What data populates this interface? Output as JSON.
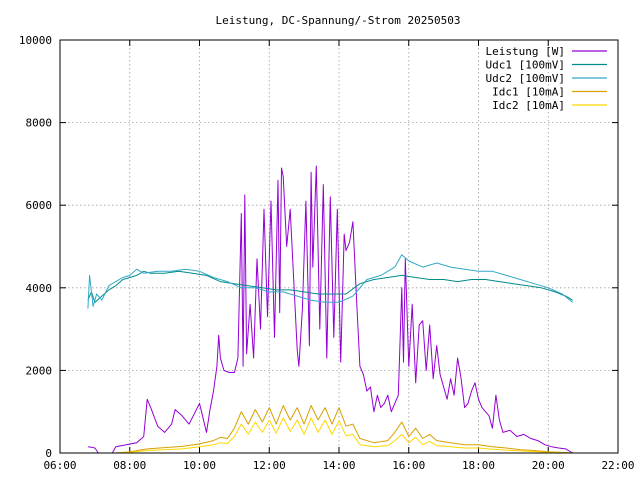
{
  "chart_data": {
    "type": "line",
    "title": "Leistung, DC-Spannung/-Strom 20250503",
    "xlabel": "",
    "ylabel": "",
    "x_ticks": [
      "06:00",
      "08:00",
      "10:00",
      "12:00",
      "14:00",
      "16:00",
      "18:00",
      "20:00",
      "22:00"
    ],
    "x_range_hours": [
      6,
      22
    ],
    "y_ticks": [
      "0",
      "2000",
      "4000",
      "6000",
      "8000",
      "10000"
    ],
    "ylim": [
      0,
      10000
    ],
    "grid": true,
    "legend_position": "top-right",
    "series": [
      {
        "name": "Leistung [W]",
        "color": "#9400d3",
        "points": [
          [
            6.8,
            150
          ],
          [
            6.9,
            140
          ],
          [
            7.0,
            120
          ],
          [
            7.1,
            0
          ],
          [
            7.5,
            0
          ],
          [
            7.6,
            150
          ],
          [
            7.9,
            200
          ],
          [
            8.2,
            250
          ],
          [
            8.4,
            400
          ],
          [
            8.5,
            1300
          ],
          [
            8.6,
            1100
          ],
          [
            8.8,
            650
          ],
          [
            9.0,
            500
          ],
          [
            9.2,
            700
          ],
          [
            9.3,
            1050
          ],
          [
            9.5,
            900
          ],
          [
            9.7,
            700
          ],
          [
            9.85,
            950
          ],
          [
            10.0,
            1200
          ],
          [
            10.1,
            850
          ],
          [
            10.2,
            500
          ],
          [
            10.3,
            1050
          ],
          [
            10.4,
            1500
          ],
          [
            10.5,
            2100
          ],
          [
            10.55,
            2850
          ],
          [
            10.6,
            2300
          ],
          [
            10.7,
            2000
          ],
          [
            10.85,
            1950
          ],
          [
            11.0,
            1950
          ],
          [
            11.1,
            2300
          ],
          [
            11.2,
            5800
          ],
          [
            11.25,
            2100
          ],
          [
            11.3,
            6250
          ],
          [
            11.35,
            2400
          ],
          [
            11.45,
            3600
          ],
          [
            11.55,
            2300
          ],
          [
            11.65,
            4700
          ],
          [
            11.75,
            3000
          ],
          [
            11.85,
            5900
          ],
          [
            11.95,
            3300
          ],
          [
            12.05,
            6100
          ],
          [
            12.15,
            2800
          ],
          [
            12.25,
            6600
          ],
          [
            12.3,
            3400
          ],
          [
            12.35,
            6900
          ],
          [
            12.4,
            6700
          ],
          [
            12.5,
            5000
          ],
          [
            12.6,
            5900
          ],
          [
            12.7,
            4200
          ],
          [
            12.8,
            2500
          ],
          [
            12.85,
            2100
          ],
          [
            12.95,
            3500
          ],
          [
            13.05,
            6100
          ],
          [
            13.15,
            2600
          ],
          [
            13.2,
            6800
          ],
          [
            13.25,
            4500
          ],
          [
            13.35,
            6950
          ],
          [
            13.45,
            3000
          ],
          [
            13.55,
            6500
          ],
          [
            13.65,
            2300
          ],
          [
            13.75,
            6200
          ],
          [
            13.85,
            2800
          ],
          [
            13.95,
            5900
          ],
          [
            14.05,
            2200
          ],
          [
            14.15,
            5300
          ],
          [
            14.2,
            4900
          ],
          [
            14.3,
            5100
          ],
          [
            14.4,
            5600
          ],
          [
            14.5,
            3800
          ],
          [
            14.6,
            2100
          ],
          [
            14.7,
            1900
          ],
          [
            14.8,
            1500
          ],
          [
            14.9,
            1600
          ],
          [
            15.0,
            1000
          ],
          [
            15.1,
            1400
          ],
          [
            15.2,
            1100
          ],
          [
            15.3,
            1200
          ],
          [
            15.4,
            1400
          ],
          [
            15.5,
            1000
          ],
          [
            15.6,
            1200
          ],
          [
            15.7,
            1400
          ],
          [
            15.8,
            4000
          ],
          [
            15.85,
            2200
          ],
          [
            15.9,
            4700
          ],
          [
            16.0,
            2100
          ],
          [
            16.1,
            3600
          ],
          [
            16.2,
            1700
          ],
          [
            16.3,
            3100
          ],
          [
            16.4,
            3200
          ],
          [
            16.5,
            2000
          ],
          [
            16.6,
            3100
          ],
          [
            16.7,
            1800
          ],
          [
            16.8,
            2600
          ],
          [
            16.9,
            1900
          ],
          [
            17.0,
            1600
          ],
          [
            17.1,
            1300
          ],
          [
            17.2,
            1800
          ],
          [
            17.3,
            1400
          ],
          [
            17.4,
            2300
          ],
          [
            17.5,
            1800
          ],
          [
            17.6,
            1100
          ],
          [
            17.7,
            1200
          ],
          [
            17.8,
            1500
          ],
          [
            17.9,
            1700
          ],
          [
            18.0,
            1300
          ],
          [
            18.1,
            1100
          ],
          [
            18.2,
            1000
          ],
          [
            18.3,
            900
          ],
          [
            18.4,
            600
          ],
          [
            18.5,
            1400
          ],
          [
            18.6,
            800
          ],
          [
            18.7,
            500
          ],
          [
            18.9,
            550
          ],
          [
            19.1,
            400
          ],
          [
            19.3,
            450
          ],
          [
            19.5,
            350
          ],
          [
            19.7,
            300
          ],
          [
            19.9,
            200
          ],
          [
            20.1,
            150
          ],
          [
            20.3,
            120
          ],
          [
            20.5,
            100
          ],
          [
            20.7,
            0
          ]
        ]
      },
      {
        "name": "Udc1 [100mV]",
        "color": "#008b8b",
        "points": [
          [
            6.8,
            3700
          ],
          [
            6.9,
            3900
          ],
          [
            7.0,
            3650
          ],
          [
            7.2,
            3800
          ],
          [
            7.4,
            3950
          ],
          [
            7.6,
            4050
          ],
          [
            7.8,
            4200
          ],
          [
            8.0,
            4250
          ],
          [
            8.2,
            4300
          ],
          [
            8.4,
            4400
          ],
          [
            8.6,
            4350
          ],
          [
            9.0,
            4350
          ],
          [
            9.4,
            4400
          ],
          [
            9.8,
            4350
          ],
          [
            10.2,
            4300
          ],
          [
            10.6,
            4150
          ],
          [
            11.0,
            4100
          ],
          [
            11.4,
            4050
          ],
          [
            11.8,
            4000
          ],
          [
            12.2,
            3950
          ],
          [
            12.6,
            3950
          ],
          [
            13.0,
            3900
          ],
          [
            13.4,
            3850
          ],
          [
            13.8,
            3850
          ],
          [
            14.2,
            3850
          ],
          [
            14.6,
            4100
          ],
          [
            15.0,
            4200
          ],
          [
            15.4,
            4250
          ],
          [
            15.8,
            4300
          ],
          [
            16.2,
            4250
          ],
          [
            16.6,
            4200
          ],
          [
            17.0,
            4200
          ],
          [
            17.4,
            4150
          ],
          [
            17.8,
            4200
          ],
          [
            18.2,
            4200
          ],
          [
            18.6,
            4150
          ],
          [
            19.0,
            4100
          ],
          [
            19.4,
            4050
          ],
          [
            19.8,
            4000
          ],
          [
            20.2,
            3900
          ],
          [
            20.5,
            3800
          ],
          [
            20.7,
            3700
          ]
        ]
      },
      {
        "name": "Udc2 [100mV]",
        "color": "#32a8c8",
        "points": [
          [
            6.8,
            3500
          ],
          [
            6.85,
            4300
          ],
          [
            6.95,
            3550
          ],
          [
            7.05,
            3850
          ],
          [
            7.2,
            3700
          ],
          [
            7.4,
            4050
          ],
          [
            7.6,
            4150
          ],
          [
            7.8,
            4250
          ],
          [
            8.0,
            4300
          ],
          [
            8.2,
            4450
          ],
          [
            8.4,
            4350
          ],
          [
            8.8,
            4400
          ],
          [
            9.2,
            4400
          ],
          [
            9.6,
            4450
          ],
          [
            10.0,
            4400
          ],
          [
            10.4,
            4250
          ],
          [
            10.8,
            4150
          ],
          [
            11.2,
            4000
          ],
          [
            11.6,
            4000
          ],
          [
            12.0,
            3900
          ],
          [
            12.4,
            3900
          ],
          [
            12.8,
            3800
          ],
          [
            13.2,
            3700
          ],
          [
            13.6,
            3650
          ],
          [
            14.0,
            3650
          ],
          [
            14.4,
            3800
          ],
          [
            14.8,
            4200
          ],
          [
            15.2,
            4300
          ],
          [
            15.6,
            4500
          ],
          [
            15.8,
            4800
          ],
          [
            16.0,
            4650
          ],
          [
            16.4,
            4500
          ],
          [
            16.8,
            4600
          ],
          [
            17.2,
            4500
          ],
          [
            17.6,
            4450
          ],
          [
            18.0,
            4400
          ],
          [
            18.4,
            4400
          ],
          [
            18.8,
            4300
          ],
          [
            19.2,
            4200
          ],
          [
            19.6,
            4100
          ],
          [
            20.0,
            4000
          ],
          [
            20.4,
            3850
          ],
          [
            20.7,
            3650
          ]
        ]
      },
      {
        "name": "Idc1 [10mA]",
        "color": "#d7a000",
        "points": [
          [
            7.6,
            0
          ],
          [
            8.0,
            30
          ],
          [
            8.5,
            100
          ],
          [
            9.0,
            130
          ],
          [
            9.5,
            160
          ],
          [
            10.0,
            220
          ],
          [
            10.4,
            300
          ],
          [
            10.6,
            380
          ],
          [
            10.8,
            350
          ],
          [
            11.0,
            600
          ],
          [
            11.2,
            1000
          ],
          [
            11.4,
            700
          ],
          [
            11.6,
            1050
          ],
          [
            11.8,
            750
          ],
          [
            12.0,
            1100
          ],
          [
            12.2,
            700
          ],
          [
            12.4,
            1150
          ],
          [
            12.6,
            800
          ],
          [
            12.8,
            1100
          ],
          [
            13.0,
            700
          ],
          [
            13.2,
            1150
          ],
          [
            13.4,
            800
          ],
          [
            13.6,
            1100
          ],
          [
            13.8,
            700
          ],
          [
            14.0,
            1100
          ],
          [
            14.2,
            650
          ],
          [
            14.4,
            700
          ],
          [
            14.6,
            350
          ],
          [
            15.0,
            250
          ],
          [
            15.4,
            300
          ],
          [
            15.6,
            500
          ],
          [
            15.8,
            750
          ],
          [
            16.0,
            400
          ],
          [
            16.2,
            600
          ],
          [
            16.4,
            350
          ],
          [
            16.6,
            450
          ],
          [
            16.8,
            300
          ],
          [
            17.2,
            250
          ],
          [
            17.6,
            200
          ],
          [
            18.0,
            200
          ],
          [
            18.4,
            150
          ],
          [
            18.8,
            120
          ],
          [
            19.2,
            80
          ],
          [
            19.6,
            60
          ],
          [
            20.0,
            30
          ],
          [
            20.4,
            15
          ],
          [
            20.7,
            0
          ]
        ]
      },
      {
        "name": "Idc2 [10mA]",
        "color": "#ffd700",
        "points": [
          [
            7.6,
            0
          ],
          [
            8.0,
            20
          ],
          [
            8.5,
            60
          ],
          [
            9.0,
            80
          ],
          [
            9.5,
            100
          ],
          [
            10.0,
            150
          ],
          [
            10.4,
            200
          ],
          [
            10.6,
            250
          ],
          [
            10.8,
            230
          ],
          [
            11.0,
            400
          ],
          [
            11.2,
            700
          ],
          [
            11.4,
            450
          ],
          [
            11.6,
            750
          ],
          [
            11.8,
            500
          ],
          [
            12.0,
            800
          ],
          [
            12.2,
            480
          ],
          [
            12.4,
            850
          ],
          [
            12.6,
            520
          ],
          [
            12.8,
            800
          ],
          [
            13.0,
            450
          ],
          [
            13.2,
            850
          ],
          [
            13.4,
            500
          ],
          [
            13.6,
            800
          ],
          [
            13.8,
            450
          ],
          [
            14.0,
            780
          ],
          [
            14.2,
            420
          ],
          [
            14.4,
            450
          ],
          [
            14.6,
            200
          ],
          [
            15.0,
            150
          ],
          [
            15.4,
            180
          ],
          [
            15.6,
            300
          ],
          [
            15.8,
            450
          ],
          [
            16.0,
            250
          ],
          [
            16.2,
            380
          ],
          [
            16.4,
            200
          ],
          [
            16.6,
            280
          ],
          [
            16.8,
            180
          ],
          [
            17.2,
            150
          ],
          [
            17.6,
            120
          ],
          [
            18.0,
            120
          ],
          [
            18.4,
            90
          ],
          [
            18.8,
            70
          ],
          [
            19.2,
            50
          ],
          [
            19.6,
            35
          ],
          [
            20.0,
            20
          ],
          [
            20.4,
            10
          ],
          [
            20.7,
            0
          ]
        ]
      }
    ]
  }
}
